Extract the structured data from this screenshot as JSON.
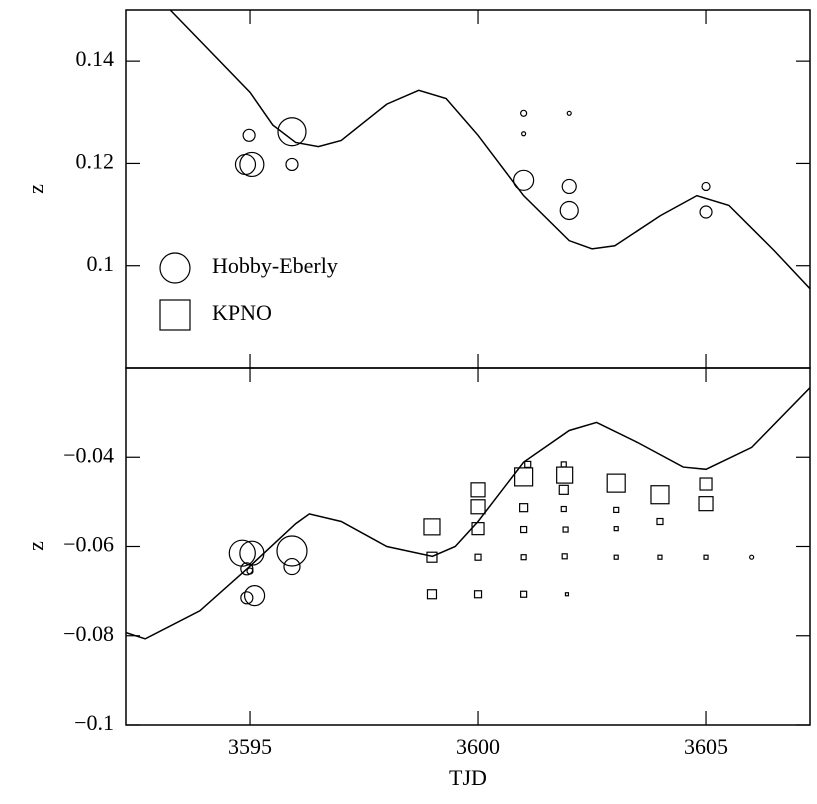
{
  "chart_data": [
    {
      "type": "scatter",
      "ylabel": "z",
      "xlim": [
        3592.28,
        3607.28
      ],
      "ylim": [
        0.08,
        0.15
      ],
      "yticks": [
        0.14,
        0.12,
        0.1
      ],
      "legend": "lower left",
      "series": [
        {
          "style": "line",
          "color": "#000000",
          "x": [
            3593.25,
            3594,
            3595,
            3595.5,
            3596,
            3596.5,
            3597,
            3598,
            3598.7,
            3599.3,
            3600,
            3601,
            3602,
            3602.5,
            3603,
            3604,
            3604.8,
            3605.5,
            3606.5,
            3607.28
          ],
          "values": [
            0.15,
            0.1431,
            0.1339,
            0.1275,
            0.1241,
            0.1233,
            0.1245,
            0.1316,
            0.1343,
            0.1327,
            0.1255,
            0.1137,
            0.1049,
            0.1033,
            0.1039,
            0.1098,
            0.1137,
            0.1118,
            0.1029,
            0.0955
          ]
        },
        {
          "name": "Hobby-Eberly",
          "marker": "circle",
          "color": "#000000",
          "x": [
            3594.9,
            3595.04,
            3594.98,
            3595.92,
            3595.92,
            3601.0,
            3601.0,
            3602.0,
            3601.0,
            3602.0,
            3602.0,
            3605.0,
            3605.0
          ],
          "values": [
            0.1198,
            0.1198,
            0.1255,
            0.1262,
            0.1198,
            0.1298,
            0.1258,
            0.1298,
            0.1167,
            0.1155,
            0.1108,
            0.1155,
            0.1105
          ],
          "sizes": [
            10,
            12,
            6,
            14,
            6,
            3,
            2,
            2,
            10,
            7,
            9,
            4,
            6
          ]
        },
        {
          "name": "KPNO",
          "marker": "square",
          "color": "#000000",
          "x": [],
          "values": [],
          "sizes": []
        }
      ]
    },
    {
      "type": "scatter",
      "ylabel": "z",
      "xlabel": "TJD",
      "xlim": [
        3592.28,
        3607.28
      ],
      "ylim": [
        -0.1,
        -0.02
      ],
      "xticks": [
        3595,
        3600,
        3605
      ],
      "yticks": [
        {
          "value": -0.04,
          "label": "−0.04"
        },
        {
          "value": -0.06,
          "label": "−0.06"
        },
        {
          "value": -0.08,
          "label": "−0.08"
        },
        {
          "value": -0.1,
          "label": "−0.1"
        }
      ],
      "series": [
        {
          "style": "line",
          "color": "#000000",
          "x": [
            3592.28,
            3592.7,
            3593.9,
            3595,
            3596,
            3596.3,
            3597,
            3598,
            3599,
            3599.5,
            3600,
            3601,
            3602,
            3602.6,
            3603.5,
            3604.5,
            3605,
            3606,
            3607.28
          ],
          "values": [
            -0.0793,
            -0.0807,
            -0.0744,
            -0.0644,
            -0.0549,
            -0.0527,
            -0.0544,
            -0.06,
            -0.0622,
            -0.06,
            -0.0544,
            -0.0411,
            -0.034,
            -0.0322,
            -0.0367,
            -0.0422,
            -0.0427,
            -0.0378,
            -0.0244
          ]
        },
        {
          "marker": "circle",
          "color": "#000000",
          "x": [
            3594.83,
            3595.04,
            3594.93,
            3595.0,
            3594.93,
            3595.1,
            3595.92,
            3595.92,
            3606.0
          ],
          "values": [
            -0.0615,
            -0.0615,
            -0.065,
            -0.0655,
            -0.0715,
            -0.071,
            -0.061,
            -0.0645,
            -0.0624
          ],
          "sizes": [
            13,
            12,
            6,
            3,
            6,
            10,
            15,
            8,
            2
          ]
        },
        {
          "marker": "square",
          "color": "#000000",
          "x": [
            3598.99,
            3598.99,
            3598.99,
            3600.0,
            3600.0,
            3600.0,
            3600.0,
            3600.0,
            3601.0,
            3601.09,
            3601.0,
            3601.0,
            3601.0,
            3601.0,
            3601.9,
            3601.88,
            3601.88,
            3601.88,
            3601.92,
            3601.9,
            3601.95,
            3603.03,
            3603.03,
            3603.03,
            3603.03,
            3603.99,
            3603.99,
            3603.99,
            3605.0,
            3605.0,
            3605.0
          ],
          "values": [
            -0.0556,
            -0.0624,
            -0.0707,
            -0.0473,
            -0.0511,
            -0.056,
            -0.0624,
            -0.0707,
            -0.0444,
            -0.0416,
            -0.0513,
            -0.0562,
            -0.0624,
            -0.0707,
            -0.044,
            -0.0416,
            -0.0473,
            -0.0516,
            -0.0562,
            -0.0622,
            -0.0707,
            -0.0458,
            -0.0518,
            -0.056,
            -0.0624,
            -0.0484,
            -0.0544,
            -0.0624,
            -0.046,
            -0.0504,
            -0.0624
          ],
          "sizes": [
            16,
            10,
            9,
            14,
            14,
            12,
            6,
            7,
            18,
            6,
            8,
            6,
            5,
            6,
            16,
            5,
            9,
            5,
            5,
            5,
            3,
            18,
            5,
            4,
            4,
            18,
            6,
            4,
            12,
            14,
            4
          ]
        }
      ]
    }
  ]
}
